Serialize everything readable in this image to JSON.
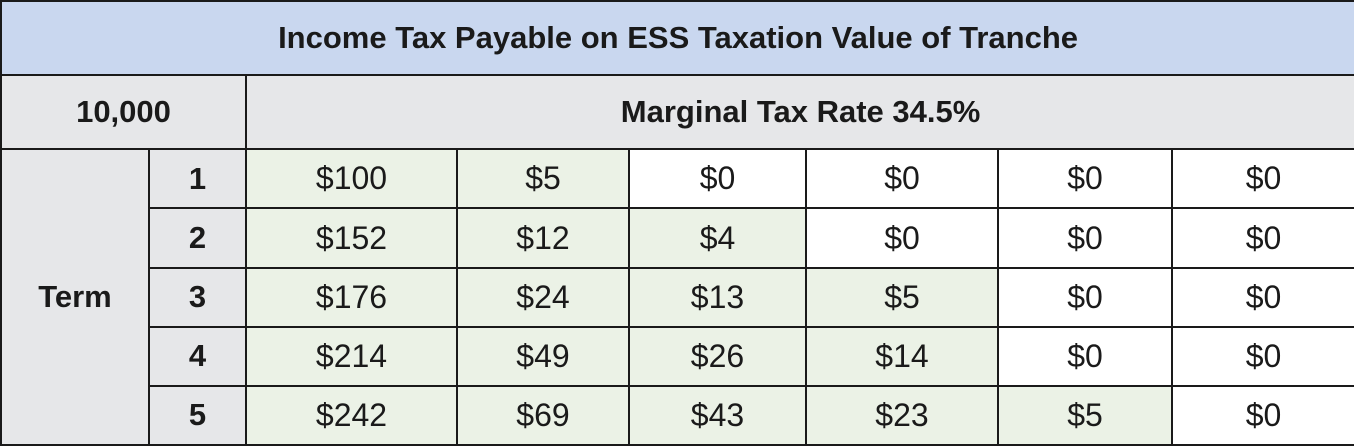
{
  "header": {
    "title": "Income Tax Payable on ESS Taxation Value of Tranche"
  },
  "table": {
    "corner": "10,000",
    "subheader": "Marginal Tax Rate 34.5%",
    "row_group": "Term",
    "rows": [
      {
        "term": "1",
        "cells": [
          "$100",
          "$5",
          "$0",
          "$0",
          "$0",
          "$0"
        ]
      },
      {
        "term": "2",
        "cells": [
          "$152",
          "$12",
          "$4",
          "$0",
          "$0",
          "$0"
        ]
      },
      {
        "term": "3",
        "cells": [
          "$176",
          "$24",
          "$13",
          "$5",
          "$0",
          "$0"
        ]
      },
      {
        "term": "4",
        "cells": [
          "$214",
          "$49",
          "$26",
          "$14",
          "$0",
          "$0"
        ]
      },
      {
        "term": "5",
        "cells": [
          "$242",
          "$69",
          "$43",
          "$23",
          "$5",
          "$0"
        ]
      }
    ]
  }
}
